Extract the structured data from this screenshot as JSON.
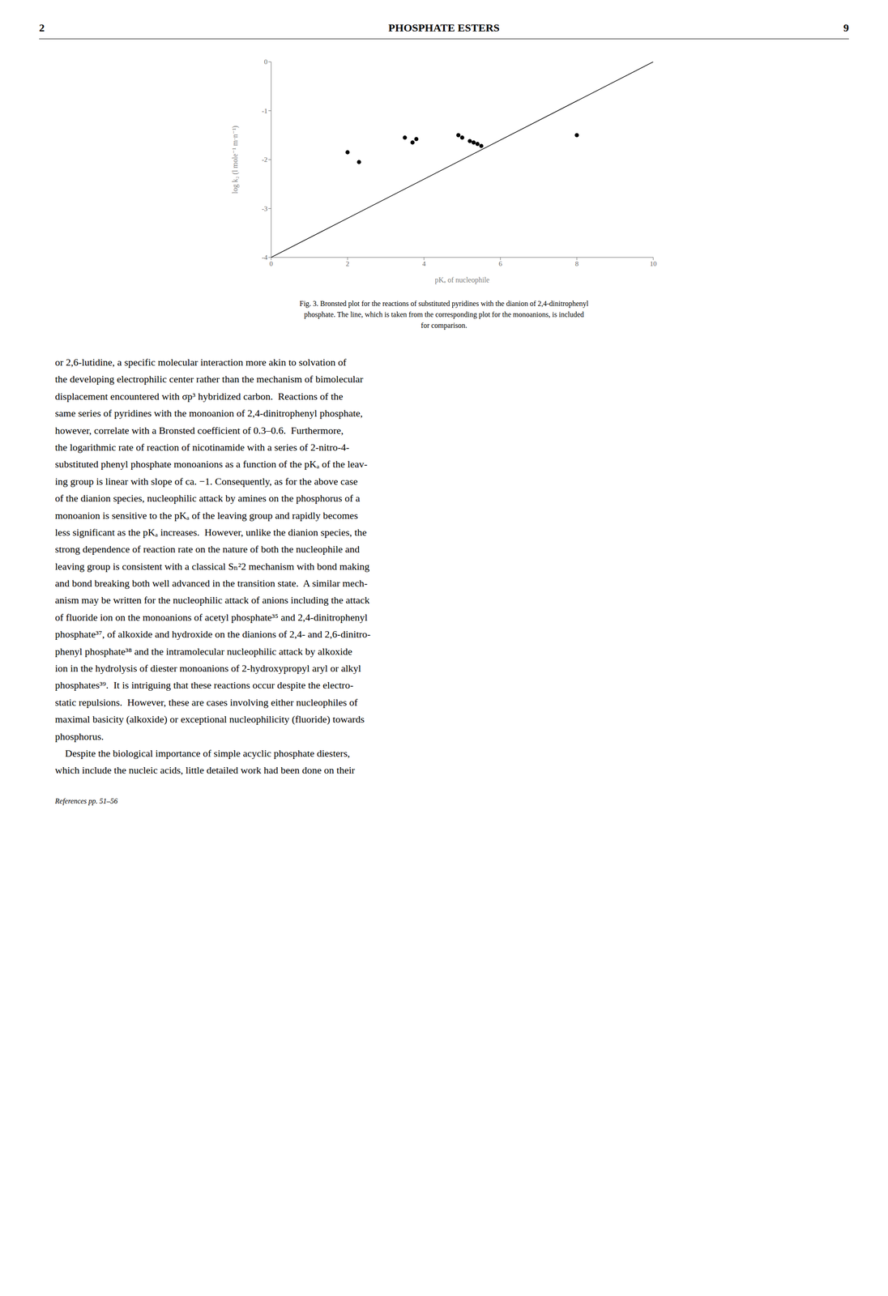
{
  "chart_data": {
    "type": "scatter",
    "title": "PHOSPHATE ESTERS",
    "x_label": "pKₐ  of nucleophile",
    "y_label": "log k₂  (l mole⁻¹ m·n⁻¹)",
    "xlim": [
      0,
      10
    ],
    "ylim": [
      -4,
      0
    ],
    "xticks": [
      0,
      2,
      4,
      6,
      8,
      10
    ],
    "yticks": [
      0,
      -1,
      -2,
      -3,
      -4
    ],
    "grid": false,
    "series": [
      {
        "type": "line",
        "color": "#000000",
        "x": [
          0,
          10
        ],
        "values": [
          -4.0,
          0.0
        ]
      },
      {
        "type": "scatter",
        "color": "#000000",
        "marker": "circle",
        "x": [
          2.0,
          2.3,
          3.5,
          3.7,
          3.8,
          4.9,
          5.0,
          5.2,
          5.3,
          5.4,
          5.5,
          8.0
        ],
        "values": [
          -1.85,
          -2.05,
          -1.55,
          -1.65,
          -1.58,
          -1.5,
          -1.55,
          -1.62,
          -1.65,
          -1.68,
          -1.72,
          -1.5
        ]
      }
    ],
    "annotations": [
      "2",
      "9",
      "Fig. 3.  Bronsted plot for the reactions of substituted pyridines with the dianion of 2,4-dinitrophenyl",
      "phosphate. The line, which is taken from the corresponding plot for the monoanions, is included",
      "for comparison.",
      "or 2,6-lutidine, a specific molecular interaction more akin to solvation of",
      "the developing electrophilic center rather than the mechanism of bimolecular",
      "displacement encountered with σp³ hybridized carbon.  Reactions of the",
      "same series of pyridines with the monoanion of 2,4-dinitrophenyl phosphate,",
      "however, correlate with a Bronsted coefficient of 0.3–0.6.  Furthermore,",
      "the logarithmic rate of reaction of nicotinamide with a series of 2-nitro-4-",
      "substituted phenyl phosphate monoanions as a function of the pKₐ of the leav-",
      "ing group is linear with slope of ca. −1. Consequently, as for the above case",
      "of the dianion species, nucleophilic attack by amines on the phosphorus of a",
      "monoanion is sensitive to the pKₐ of the leaving group and rapidly becomes",
      "less significant as the pKₐ increases.  However, unlike the dianion species, the",
      "strong dependence of reaction rate on the nature of both the nucleophile and",
      "leaving group is consistent with a classical Sₙ²2 mechanism with bond making",
      "and bond breaking both well advanced in the transition state.  A similar mech-",
      "anism may be written for the nucleophilic attack of anions including the attack",
      "of fluoride ion on the monoanions of acetyl phosphate³⁵ and 2,4-dinitrophenyl",
      "phosphate³⁷, of alkoxide and hydroxide on the dianions of 2,4- and 2,6-dinitro-",
      "phenyl phosphate³⁸ and the intramolecular nucleophilic attack by alkoxide",
      "ion in the hydrolysis of diester monoanions of 2-hydroxypropyl aryl or alkyl",
      "phosphates³⁹.  It is intriguing that these reactions occur despite the electro-",
      "static repulsions.  However, these are cases involving either nucleophiles of",
      "maximal basicity (alkoxide) or exceptional nucleophilicity (fluoride) towards",
      "phosphorus.",
      "    Despite the biological importance of simple acyclic phosphate diesters,",
      "which include the nucleic acids, little detailed work had been done on their",
      "References pp. 51–56"
    ]
  }
}
